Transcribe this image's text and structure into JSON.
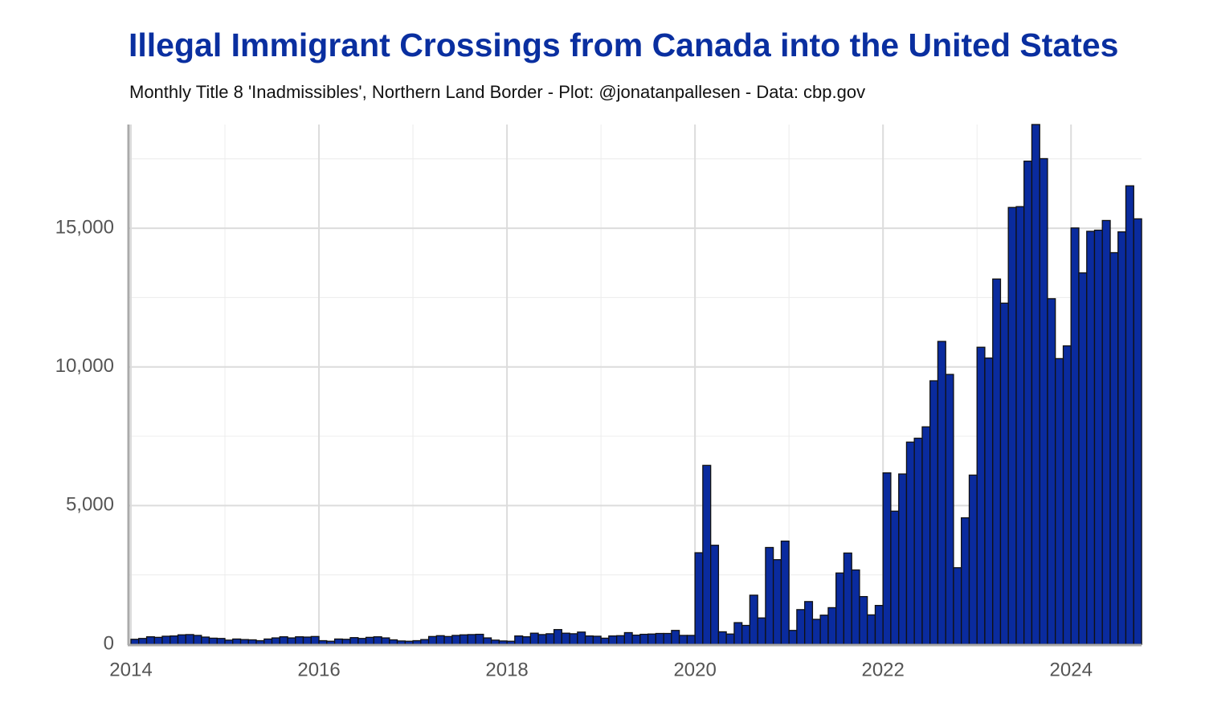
{
  "chart_data": {
    "type": "bar",
    "title": "Illegal Immigrant Crossings from Canada into the United States",
    "subtitle": "Monthly Title 8 'Inadmissibles', Northern Land Border - Plot: @jonatanpallesen - Data: cbp.gov",
    "color": "#0a2b9e",
    "edgecolor": "#111111",
    "grid": true,
    "xlim": [
      2014,
      2024.75
    ],
    "xticks": [
      2014,
      2016,
      2018,
      2020,
      2022,
      2024
    ],
    "ylim": [
      0,
      18740
    ],
    "yticks": [
      0,
      {
        "value": 5000,
        "label": "5,000"
      },
      {
        "value": 10000,
        "label": "10,000"
      },
      {
        "value": 15000,
        "label": "15,000"
      }
    ],
    "x": [
      2014,
      2014.083,
      2014.167,
      2014.25,
      2014.333,
      2014.417,
      2014.5,
      2014.583,
      2014.667,
      2014.75,
      2014.833,
      2014.917,
      2015,
      2015.083,
      2015.167,
      2015.25,
      2015.333,
      2015.417,
      2015.5,
      2015.583,
      2015.667,
      2015.75,
      2015.833,
      2015.917,
      2016,
      2016.083,
      2016.167,
      2016.25,
      2016.333,
      2016.417,
      2016.5,
      2016.583,
      2016.667,
      2016.75,
      2016.833,
      2016.917,
      2017,
      2017.083,
      2017.167,
      2017.25,
      2017.333,
      2017.417,
      2017.5,
      2017.583,
      2017.667,
      2017.75,
      2017.833,
      2017.917,
      2018,
      2018.083,
      2018.167,
      2018.25,
      2018.333,
      2018.417,
      2018.5,
      2018.583,
      2018.667,
      2018.75,
      2018.833,
      2018.917,
      2019,
      2019.083,
      2019.167,
      2019.25,
      2019.333,
      2019.417,
      2019.5,
      2019.583,
      2019.667,
      2019.75,
      2019.833,
      2019.917,
      2020,
      2020.083,
      2020.167,
      2020.25,
      2020.333,
      2020.417,
      2020.5,
      2020.583,
      2020.667,
      2020.75,
      2020.833,
      2020.917,
      2021,
      2021.083,
      2021.167,
      2021.25,
      2021.333,
      2021.417,
      2021.5,
      2021.583,
      2021.667,
      2021.75,
      2021.833,
      2021.917,
      2022,
      2022.083,
      2022.167,
      2022.25,
      2022.333,
      2022.417,
      2022.5,
      2022.583,
      2022.667,
      2022.75,
      2022.833,
      2022.917,
      2023,
      2023.083,
      2023.167,
      2023.25,
      2023.333,
      2023.417,
      2023.5,
      2023.583,
      2023.667,
      2023.75,
      2023.833,
      2023.917,
      2024,
      2024.083,
      2024.167,
      2024.25,
      2024.333,
      2024.417,
      2024.5,
      2024.583,
      2024.667
    ],
    "values": [
      180,
      210,
      270,
      250,
      290,
      300,
      340,
      350,
      320,
      260,
      220,
      210,
      150,
      190,
      170,
      160,
      130,
      190,
      230,
      270,
      230,
      270,
      260,
      280,
      130,
      110,
      190,
      180,
      240,
      210,
      250,
      270,
      230,
      160,
      120,
      110,
      130,
      170,
      280,
      310,
      280,
      320,
      340,
      350,
      360,
      230,
      150,
      120,
      110,
      300,
      270,
      400,
      350,
      380,
      530,
      400,
      380,
      440,
      300,
      290,
      220,
      300,
      310,
      420,
      330,
      360,
      370,
      390,
      390,
      500,
      320,
      320,
      3300,
      6450,
      3570,
      450,
      370,
      780,
      680,
      1770,
      950,
      3490,
      3050,
      3720,
      500,
      1250,
      1540,
      900,
      1050,
      1320,
      2570,
      3290,
      2680,
      1720,
      1060,
      1400,
      6180,
      4800,
      6140,
      7290,
      7430,
      7840,
      9500,
      10920,
      9730,
      2760,
      4560,
      6100,
      10710,
      10320,
      13170,
      12300,
      15750,
      15780,
      17420,
      18740,
      17510,
      12460,
      10300,
      10760,
      15010,
      13390,
      14890,
      14930,
      15280,
      14120,
      14870,
      16530,
      15340
    ]
  }
}
